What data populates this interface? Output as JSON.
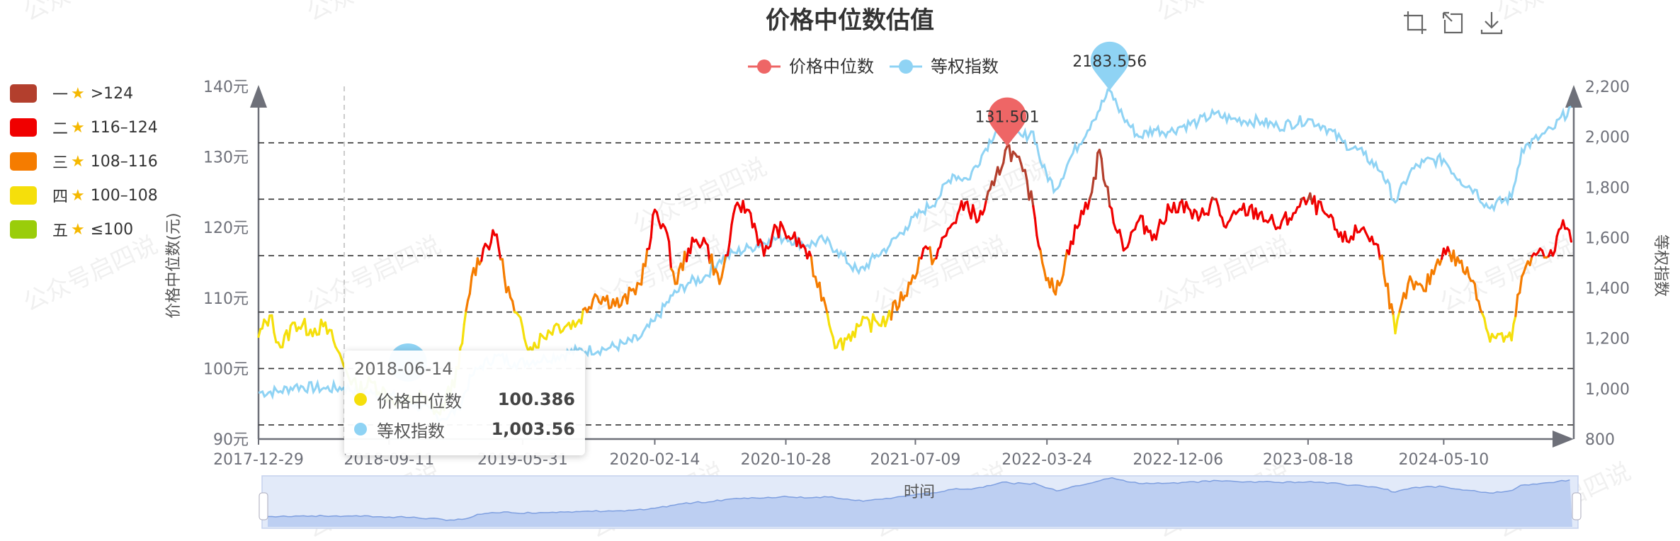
{
  "chart_data": {
    "type": "line",
    "title": "价格中位数估值",
    "xlabel": "时间",
    "ylabel": "价格中位数(元)",
    "y2label": "等权指数",
    "x_ticks": [
      "2017-12-29",
      "2018-09-11",
      "2019-05-31",
      "2020-02-14",
      "2020-10-28",
      "2021-07-09",
      "2022-03-24",
      "2022-12-06",
      "2023-08-18",
      "2024-05-10"
    ],
    "y_ticks": [
      "90元",
      "100元",
      "110元",
      "120元",
      "130元",
      "140元"
    ],
    "y2_ticks": [
      "800",
      "1,000",
      "1,200",
      "1,400",
      "1,600",
      "1,800",
      "2,000",
      "2,200"
    ],
    "ylim": [
      90,
      140
    ],
    "y2lim": [
      800,
      2200
    ],
    "reference_lines": [
      92,
      100,
      108,
      116,
      124,
      132
    ],
    "series": [
      {
        "name": "价格中位数",
        "color": "#ee6666",
        "points": [
          [
            "2017-12-29",
            104.5
          ],
          [
            "2018-01-20",
            107.5
          ],
          [
            "2018-02-10",
            103
          ],
          [
            "2018-03-10",
            106.5
          ],
          [
            "2018-04-10",
            105.5
          ],
          [
            "2018-05-05",
            106
          ],
          [
            "2018-05-25",
            104
          ],
          [
            "2018-06-14",
            100.4
          ],
          [
            "2018-07-10",
            97
          ],
          [
            "2018-08-10",
            98
          ],
          [
            "2018-09-11",
            96
          ],
          [
            "2018-10-10",
            95
          ],
          [
            "2018-11-15",
            96
          ],
          [
            "2018-12-20",
            93.5
          ],
          [
            "2019-01-25",
            100
          ],
          [
            "2019-02-20",
            113
          ],
          [
            "2019-03-15",
            117
          ],
          [
            "2019-04-10",
            119
          ],
          [
            "2019-04-25",
            113
          ],
          [
            "2019-05-15",
            108
          ],
          [
            "2019-06-15",
            103
          ],
          [
            "2019-08-01",
            106
          ],
          [
            "2019-09-15",
            106.5
          ],
          [
            "2019-10-20",
            110.5
          ],
          [
            "2019-12-10",
            109
          ],
          [
            "2020-01-15",
            112
          ],
          [
            "2020-02-03",
            117
          ],
          [
            "2020-02-14",
            122.5
          ],
          [
            "2020-03-05",
            120
          ],
          [
            "2020-03-25",
            112
          ],
          [
            "2020-04-20",
            117
          ],
          [
            "2020-05-20",
            118.5
          ],
          [
            "2020-06-20",
            112
          ],
          [
            "2020-07-10",
            118
          ],
          [
            "2020-07-25",
            123.5
          ],
          [
            "2020-08-20",
            122
          ],
          [
            "2020-09-15",
            116
          ],
          [
            "2020-10-10",
            120
          ],
          [
            "2020-11-10",
            118.5
          ],
          [
            "2020-12-05",
            117
          ],
          [
            "2020-12-25",
            113
          ],
          [
            "2021-01-10",
            110
          ],
          [
            "2021-02-05",
            103
          ],
          [
            "2021-03-20",
            106
          ],
          [
            "2021-05-15",
            107
          ],
          [
            "2021-06-30",
            112
          ],
          [
            "2021-07-25",
            117
          ],
          [
            "2021-08-15",
            115.5
          ],
          [
            "2021-09-15",
            120
          ],
          [
            "2021-10-15",
            123.5
          ],
          [
            "2021-11-10",
            121
          ],
          [
            "2021-12-10",
            126
          ],
          [
            "2022-01-05",
            131.5
          ],
          [
            "2022-02-05",
            128
          ],
          [
            "2022-02-25",
            123
          ],
          [
            "2022-03-15",
            115
          ],
          [
            "2022-04-10",
            110.5
          ],
          [
            "2022-05-10",
            118
          ],
          [
            "2022-06-20",
            125
          ],
          [
            "2022-07-05",
            131
          ],
          [
            "2022-07-25",
            123
          ],
          [
            "2022-08-25",
            117
          ],
          [
            "2022-09-20",
            121
          ],
          [
            "2022-10-20",
            119
          ],
          [
            "2022-11-20",
            122.5
          ],
          [
            "2022-12-10",
            123.5
          ],
          [
            "2023-01-15",
            121
          ],
          [
            "2023-02-15",
            124
          ],
          [
            "2023-03-10",
            120
          ],
          [
            "2023-04-10",
            122.5
          ],
          [
            "2023-05-15",
            122
          ],
          [
            "2023-06-20",
            120
          ],
          [
            "2023-07-20",
            122
          ],
          [
            "2023-08-18",
            124
          ],
          [
            "2023-09-20",
            122
          ],
          [
            "2023-10-25",
            118
          ],
          [
            "2023-12-05",
            120
          ],
          [
            "2024-01-10",
            116
          ],
          [
            "2024-02-05",
            105
          ],
          [
            "2024-03-01",
            112
          ],
          [
            "2024-04-01",
            111
          ],
          [
            "2024-05-10",
            117
          ],
          [
            "2024-06-10",
            115
          ],
          [
            "2024-07-10",
            112
          ],
          [
            "2024-08-05",
            105
          ],
          [
            "2024-09-20",
            104
          ],
          [
            "2024-10-10",
            113
          ],
          [
            "2024-11-15",
            117
          ],
          [
            "2024-12-10",
            116
          ],
          [
            "2024-12-30",
            121
          ],
          [
            "2025-01-15",
            118
          ]
        ]
      },
      {
        "name": "等权指数",
        "color": "#91cc75",
        "line_color": "#8fd3f4",
        "points": [
          [
            "2017-12-29",
            985
          ],
          [
            "2018-02-10",
            990
          ],
          [
            "2018-03-10",
            1010
          ],
          [
            "2018-05-10",
            1000
          ],
          [
            "2018-06-14",
            1003.56
          ],
          [
            "2018-08-10",
            980
          ],
          [
            "2018-10-10",
            960
          ],
          [
            "2018-12-25",
            880
          ],
          [
            "2019-01-25",
            920
          ],
          [
            "2019-02-20",
            1050
          ],
          [
            "2019-03-10",
            1090
          ],
          [
            "2019-04-10",
            1130
          ],
          [
            "2019-05-15",
            1100
          ],
          [
            "2019-07-15",
            1120
          ],
          [
            "2019-09-15",
            1150
          ],
          [
            "2019-11-15",
            1160
          ],
          [
            "2019-12-20",
            1180
          ],
          [
            "2020-01-15",
            1200
          ],
          [
            "2020-02-14",
            1270
          ],
          [
            "2020-03-20",
            1370
          ],
          [
            "2020-04-20",
            1420
          ],
          [
            "2020-05-20",
            1440
          ],
          [
            "2020-06-20",
            1510
          ],
          [
            "2020-07-20",
            1540
          ],
          [
            "2020-08-20",
            1560
          ],
          [
            "2020-09-25",
            1590
          ],
          [
            "2020-10-28",
            1600
          ],
          [
            "2020-12-10",
            1570
          ],
          [
            "2021-01-10",
            1590
          ],
          [
            "2021-02-05",
            1550
          ],
          [
            "2021-03-20",
            1460
          ],
          [
            "2021-04-20",
            1520
          ],
          [
            "2021-05-20",
            1570
          ],
          [
            "2021-06-20",
            1640
          ],
          [
            "2021-07-20",
            1700
          ],
          [
            "2021-08-20",
            1750
          ],
          [
            "2021-09-20",
            1850
          ],
          [
            "2021-10-20",
            1830
          ],
          [
            "2021-11-20",
            1940
          ],
          [
            "2021-12-20",
            2050
          ],
          [
            "2022-01-05",
            2020
          ],
          [
            "2022-02-05",
            2000
          ],
          [
            "2022-02-25",
            2020
          ],
          [
            "2022-03-15",
            1880
          ],
          [
            "2022-04-10",
            1790
          ],
          [
            "2022-05-10",
            1920
          ],
          [
            "2022-06-20",
            2060
          ],
          [
            "2022-07-25",
            2183.6
          ],
          [
            "2022-08-20",
            2080
          ],
          [
            "2022-09-20",
            2000
          ],
          [
            "2022-10-20",
            2030
          ],
          [
            "2022-11-20",
            2020
          ],
          [
            "2022-12-10",
            2040
          ],
          [
            "2023-01-15",
            2060
          ],
          [
            "2023-02-15",
            2090
          ],
          [
            "2023-03-20",
            2070
          ],
          [
            "2023-05-20",
            2060
          ],
          [
            "2023-06-20",
            2040
          ],
          [
            "2023-08-18",
            2070
          ],
          [
            "2023-09-20",
            2040
          ],
          [
            "2023-10-25",
            1980
          ],
          [
            "2023-12-05",
            1930
          ],
          [
            "2024-01-10",
            1860
          ],
          [
            "2024-02-05",
            1740
          ],
          [
            "2024-03-05",
            1860
          ],
          [
            "2024-04-01",
            1900
          ],
          [
            "2024-05-10",
            1910
          ],
          [
            "2024-06-10",
            1830
          ],
          [
            "2024-07-10",
            1790
          ],
          [
            "2024-08-05",
            1720
          ],
          [
            "2024-09-20",
            1760
          ],
          [
            "2024-10-10",
            1950
          ],
          [
            "2024-11-15",
            2000
          ],
          [
            "2024-12-10",
            2030
          ],
          [
            "2025-01-15",
            2120
          ]
        ]
      }
    ],
    "mark_points": [
      {
        "series": "价格中位数",
        "label": "131.501"
      },
      {
        "series": "等权指数",
        "label": "2183.556"
      }
    ],
    "visual_map": [
      {
        "label": "一",
        "range": ">124",
        "color": "#b33f2d",
        "min": 124,
        "max": 999
      },
      {
        "label": "二",
        "range": "116–124",
        "color": "#f00000",
        "min": 116,
        "max": 124
      },
      {
        "label": "三",
        "range": "108–116",
        "color": "#f57c00",
        "min": 108,
        "max": 116
      },
      {
        "label": "四",
        "range": "100–108",
        "color": "#f5df0b",
        "min": 100,
        "max": 108
      },
      {
        "label": "五",
        "range": "≤100",
        "color": "#9acd0a",
        "min": 0,
        "max": 100
      }
    ],
    "legend_placement": "top-center",
    "grid": false
  },
  "legend": {
    "price_label": "价格中位数",
    "price_color": "#ee6666",
    "index_label": "等权指数",
    "index_color": "#8fd3f4"
  },
  "tooltip": {
    "date": "2018-06-14",
    "rows": [
      {
        "name": "价格中位数",
        "value": "100.386",
        "color": "#f5df0b"
      },
      {
        "name": "等权指数",
        "value": "1,003.56",
        "color": "#8fd3f4"
      }
    ]
  },
  "toolbox": {
    "icons": [
      "zoom-icon",
      "restore-icon",
      "download-icon"
    ]
  },
  "watermark": "公众号启四说"
}
